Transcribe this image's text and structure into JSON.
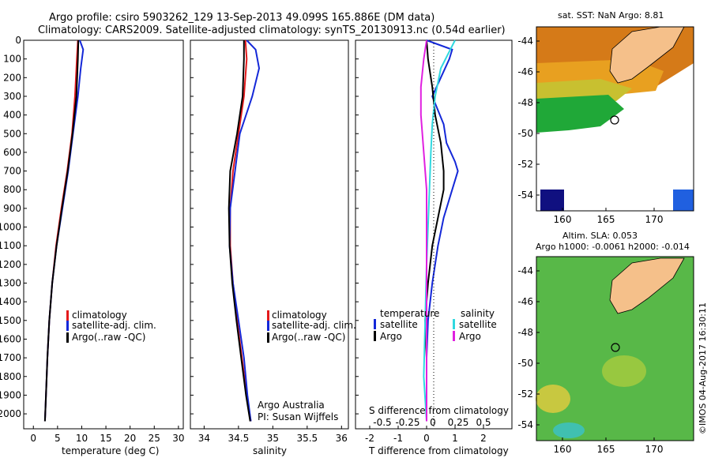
{
  "header": {
    "line1": "Argo profile: csiro 5903262_129 13-Sep-2013 49.099S 165.886E (DM data)",
    "line2": "Climatology: CARS2009. Satellite-adjusted climatology: synTS_20130913.nc (0.54d earlier)"
  },
  "colors": {
    "climatology": "#e31a1c",
    "satellite": "#1428d8",
    "argo": "#000000",
    "sat_s": "#30d8e0",
    "argo_s": "#e020e0"
  },
  "chart_data": [
    {
      "id": "temperature",
      "type": "line",
      "xlabel": "temperature (deg C)",
      "ylabel": "",
      "xlim": [
        -2,
        31
      ],
      "ylim": [
        2080,
        0
      ],
      "xticks": [
        0,
        5,
        10,
        15,
        20,
        25,
        30
      ],
      "yticks": [
        0,
        100,
        200,
        300,
        400,
        500,
        600,
        700,
        800,
        900,
        1000,
        1100,
        1200,
        1300,
        1400,
        1500,
        1600,
        1700,
        1800,
        1900,
        2000
      ],
      "legend": [
        "climatology",
        "satellite-adj. clim.",
        "Argo(..raw -QC)"
      ],
      "series": [
        {
          "name": "climatology",
          "color": "#e31a1c",
          "points": [
            [
              9.2,
              0
            ],
            [
              9.0,
              100
            ],
            [
              8.6,
              300
            ],
            [
              8.0,
              500
            ],
            [
              7.0,
              700
            ],
            [
              5.8,
              900
            ],
            [
              4.7,
              1100
            ],
            [
              3.9,
              1300
            ],
            [
              3.3,
              1500
            ],
            [
              2.9,
              1700
            ],
            [
              2.6,
              1900
            ],
            [
              2.4,
              2040
            ]
          ]
        },
        {
          "name": "satellite-adj. clim.",
          "color": "#1428d8",
          "points": [
            [
              9.6,
              0
            ],
            [
              10.3,
              50
            ],
            [
              9.8,
              150
            ],
            [
              9.2,
              300
            ],
            [
              8.2,
              500
            ],
            [
              7.2,
              700
            ],
            [
              6.0,
              900
            ],
            [
              4.8,
              1100
            ],
            [
              3.9,
              1300
            ],
            [
              3.3,
              1500
            ],
            [
              2.9,
              1700
            ],
            [
              2.6,
              1900
            ],
            [
              2.4,
              2040
            ]
          ]
        },
        {
          "name": "Argo",
          "color": "#000000",
          "points": [
            [
              9.3,
              0
            ],
            [
              9.2,
              100
            ],
            [
              8.9,
              300
            ],
            [
              8.1,
              500
            ],
            [
              7.1,
              700
            ],
            [
              5.9,
              900
            ],
            [
              4.8,
              1100
            ],
            [
              3.9,
              1300
            ],
            [
              3.3,
              1500
            ],
            [
              2.9,
              1700
            ],
            [
              2.6,
              1900
            ],
            [
              2.4,
              2040
            ]
          ]
        }
      ]
    },
    {
      "id": "salinity",
      "type": "line",
      "xlabel": "salinity",
      "ylabel": "",
      "xlim": [
        33.8,
        36.1
      ],
      "ylim": [
        2080,
        0
      ],
      "xticks": [
        34,
        34.5,
        35,
        35.5,
        36
      ],
      "legend": [
        "climatology",
        "satellite-adj. clim.",
        "Argo(..raw -QC)"
      ],
      "annotation": [
        "Argo Australia",
        "PI: Susan Wijffels"
      ],
      "series": [
        {
          "name": "climatology",
          "color": "#e31a1c",
          "points": [
            [
              34.6,
              0
            ],
            [
              34.62,
              100
            ],
            [
              34.58,
              300
            ],
            [
              34.5,
              500
            ],
            [
              34.42,
              700
            ],
            [
              34.38,
              900
            ],
            [
              34.38,
              1100
            ],
            [
              34.42,
              1300
            ],
            [
              34.48,
              1500
            ],
            [
              34.55,
              1700
            ],
            [
              34.62,
              1900
            ],
            [
              34.68,
              2040
            ]
          ]
        },
        {
          "name": "satellite-adj. clim.",
          "color": "#1428d8",
          "points": [
            [
              34.62,
              0
            ],
            [
              34.75,
              50
            ],
            [
              34.8,
              150
            ],
            [
              34.7,
              300
            ],
            [
              34.52,
              500
            ],
            [
              34.45,
              700
            ],
            [
              34.38,
              900
            ],
            [
              34.37,
              1100
            ],
            [
              34.42,
              1300
            ],
            [
              34.5,
              1500
            ],
            [
              34.58,
              1700
            ],
            [
              34.63,
              1900
            ],
            [
              34.68,
              2040
            ]
          ]
        },
        {
          "name": "Argo",
          "color": "#000000",
          "points": [
            [
              34.58,
              0
            ],
            [
              34.58,
              100
            ],
            [
              34.56,
              300
            ],
            [
              34.48,
              500
            ],
            [
              34.38,
              700
            ],
            [
              34.36,
              900
            ],
            [
              34.37,
              1100
            ],
            [
              34.41,
              1300
            ],
            [
              34.47,
              1500
            ],
            [
              34.54,
              1700
            ],
            [
              34.61,
              1900
            ],
            [
              34.67,
              2040
            ]
          ]
        }
      ]
    },
    {
      "id": "difference",
      "type": "line",
      "xlabel": "T difference from climatology",
      "toplabel": "S difference from climatology",
      "xlim": [
        -2.5,
        3
      ],
      "ylim": [
        2080,
        0
      ],
      "xticks": [
        -2,
        -1,
        0,
        1,
        2
      ],
      "sticks": [
        "-0.5",
        "-0.25",
        "0",
        "0.25",
        "0.5"
      ],
      "legend_left_title": "temperature",
      "legend_right_title": "salinity",
      "legend": [
        "satellite",
        "Argo",
        "satellite",
        "Argo"
      ],
      "series": [
        {
          "name": "T satellite",
          "color": "#1428d8",
          "points": [
            [
              0,
              0
            ],
            [
              0.9,
              50
            ],
            [
              0.8,
              100
            ],
            [
              0.5,
              200
            ],
            [
              0.2,
              300
            ],
            [
              0.6,
              450
            ],
            [
              0.7,
              550
            ],
            [
              1.0,
              650
            ],
            [
              1.1,
              700
            ],
            [
              0.9,
              800
            ],
            [
              0.6,
              950
            ],
            [
              0.4,
              1100
            ],
            [
              0.2,
              1300
            ],
            [
              0.05,
              1500
            ],
            [
              0,
              1700
            ],
            [
              0,
              2040
            ]
          ]
        },
        {
          "name": "T Argo",
          "color": "#000000",
          "points": [
            [
              0,
              0
            ],
            [
              0.05,
              100
            ],
            [
              0.2,
              250
            ],
            [
              0.3,
              400
            ],
            [
              0.5,
              550
            ],
            [
              0.6,
              700
            ],
            [
              0.6,
              800
            ],
            [
              0.4,
              950
            ],
            [
              0.2,
              1100
            ],
            [
              0.05,
              1300
            ],
            [
              -0.05,
              1500
            ],
            [
              0,
              1700
            ],
            [
              0,
              2040
            ]
          ]
        },
        {
          "name": "S satellite",
          "color": "#30d8e0",
          "points": [
            [
              1.0,
              0
            ],
            [
              0.8,
              60
            ],
            [
              0.5,
              150
            ],
            [
              0.3,
              300
            ],
            [
              0.2,
              450
            ],
            [
              0.15,
              600
            ],
            [
              0.1,
              800
            ],
            [
              0.05,
              1000
            ],
            [
              0.0,
              1200
            ],
            [
              -0.05,
              1500
            ],
            [
              -0.1,
              1800
            ],
            [
              0,
              2040
            ]
          ]
        },
        {
          "name": "S Argo",
          "color": "#e020e0",
          "points": [
            [
              0,
              0
            ],
            [
              -0.1,
              100
            ],
            [
              -0.2,
              250
            ],
            [
              -0.2,
              400
            ],
            [
              -0.1,
              600
            ],
            [
              0,
              800
            ],
            [
              0,
              1000
            ],
            [
              0,
              1300
            ],
            [
              0,
              1600
            ],
            [
              0,
              2040
            ]
          ]
        }
      ]
    }
  ],
  "maps": {
    "top_title": "sat. SST: NaN  Argo: 8.81",
    "bottom_title1": "Altim. SLA: 0.053",
    "bottom_title2": "Argo h1000: -0.0061  h2000: -0.014",
    "lat_ticks": [
      "-44",
      "-46",
      "-48",
      "-50",
      "-52",
      "-54"
    ],
    "lon_ticks": [
      "160",
      "165",
      "170"
    ],
    "credit": "©IMOS 04-Aug-2017 16:30:11"
  }
}
